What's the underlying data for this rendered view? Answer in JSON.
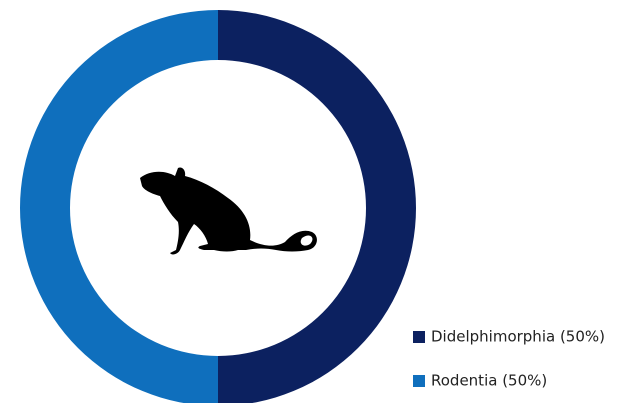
{
  "chart_data": {
    "type": "donut",
    "categories": [
      "Didelphimorphia (50%)",
      "Rodentia (50%)"
    ],
    "values": [
      50,
      50
    ],
    "colors": [
      "#0c2160",
      "#0f6fbd"
    ]
  }
}
